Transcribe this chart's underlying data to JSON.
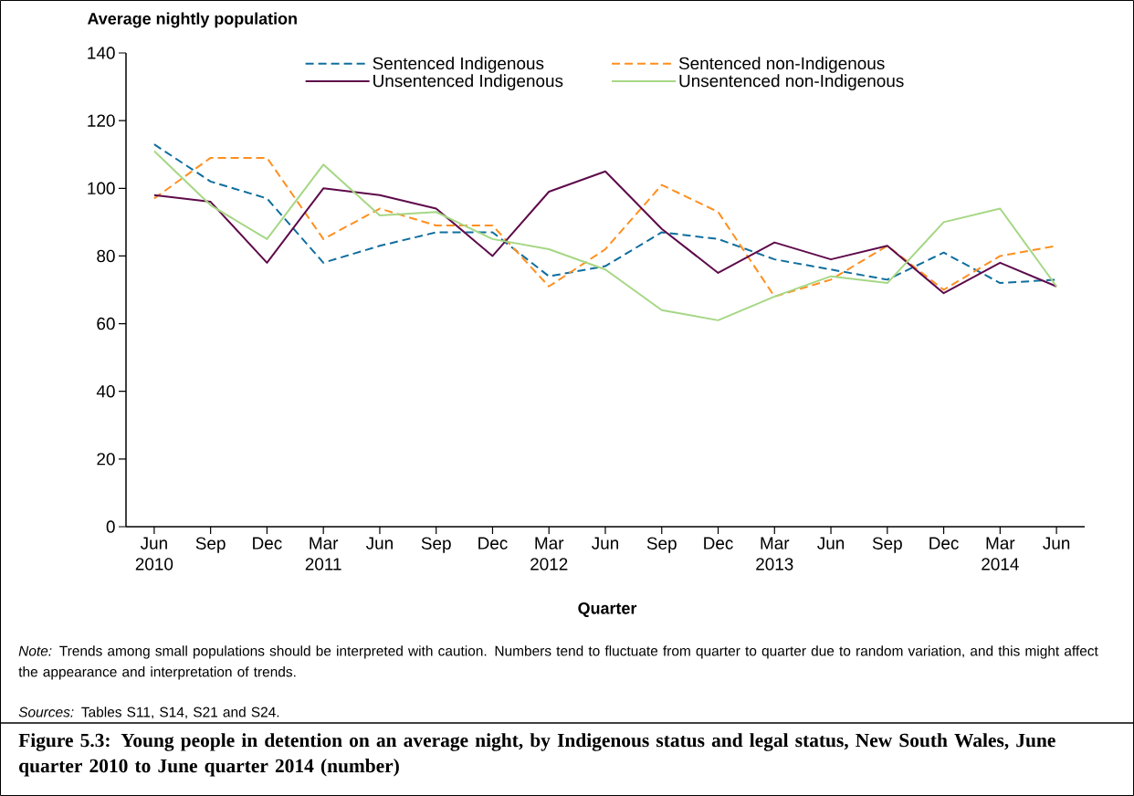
{
  "chart_data": {
    "type": "line",
    "title": "Figure 5.3: Young people in detention on an average night, by Indigenous status and legal status, New South Wales, June quarter 2010 to June quarter 2014 (number)",
    "xlabel": "Quarter",
    "ylabel": "Average nightly population",
    "annotations": [
      "*Note:* Trends among small populations should be interpreted with caution. Numbers tend to fluctuate from quarter to quarter due to random variation, and this might affect the appearance and interpretation of trends.",
      "*Sources:* Tables S11, S14, S21 and S24."
    ],
    "categories": [
      "Jun 2010",
      "Sep",
      "Dec",
      "Mar 2011",
      "Jun",
      "Sep",
      "Dec",
      "Mar 2012",
      "Jun",
      "Sep",
      "Dec",
      "Mar 2013",
      "Jun",
      "Sep",
      "Dec",
      "Mar 2014",
      "Jun"
    ],
    "series": [
      {
        "name": "Sentenced Indigenous",
        "color": "#0f6e9e",
        "line_style": "dashed",
        "values": [
          113,
          102,
          97,
          78,
          83,
          87,
          87,
          74,
          77,
          87,
          85,
          79,
          76,
          73,
          81,
          72,
          73
        ]
      },
      {
        "name": "Sentenced non-Indigenous",
        "color": "#ff8f1f",
        "line_style": "dashed",
        "values": [
          97,
          109,
          109,
          85,
          94,
          89,
          89,
          71,
          82,
          101,
          93,
          68,
          73,
          83,
          70,
          80,
          83
        ]
      },
      {
        "name": "Unsentenced Indigenous",
        "color": "#5e0a4a",
        "line_style": "solid",
        "values": [
          98,
          96,
          78,
          100,
          98,
          94,
          80,
          99,
          105,
          88,
          75,
          84,
          79,
          83,
          69,
          78,
          71
        ]
      },
      {
        "name": "Unsentenced non-Indigenous",
        "color": "#a6d785",
        "line_style": "solid",
        "values": [
          111,
          95,
          85,
          107,
          92,
          93,
          85,
          82,
          76,
          64,
          61,
          68,
          74,
          72,
          90,
          94,
          71
        ]
      }
    ],
    "ylim": [
      0,
      140
    ],
    "yticks": [
      0,
      20,
      40,
      60,
      80,
      100,
      120,
      140
    ],
    "legend": "top",
    "grid": false
  }
}
